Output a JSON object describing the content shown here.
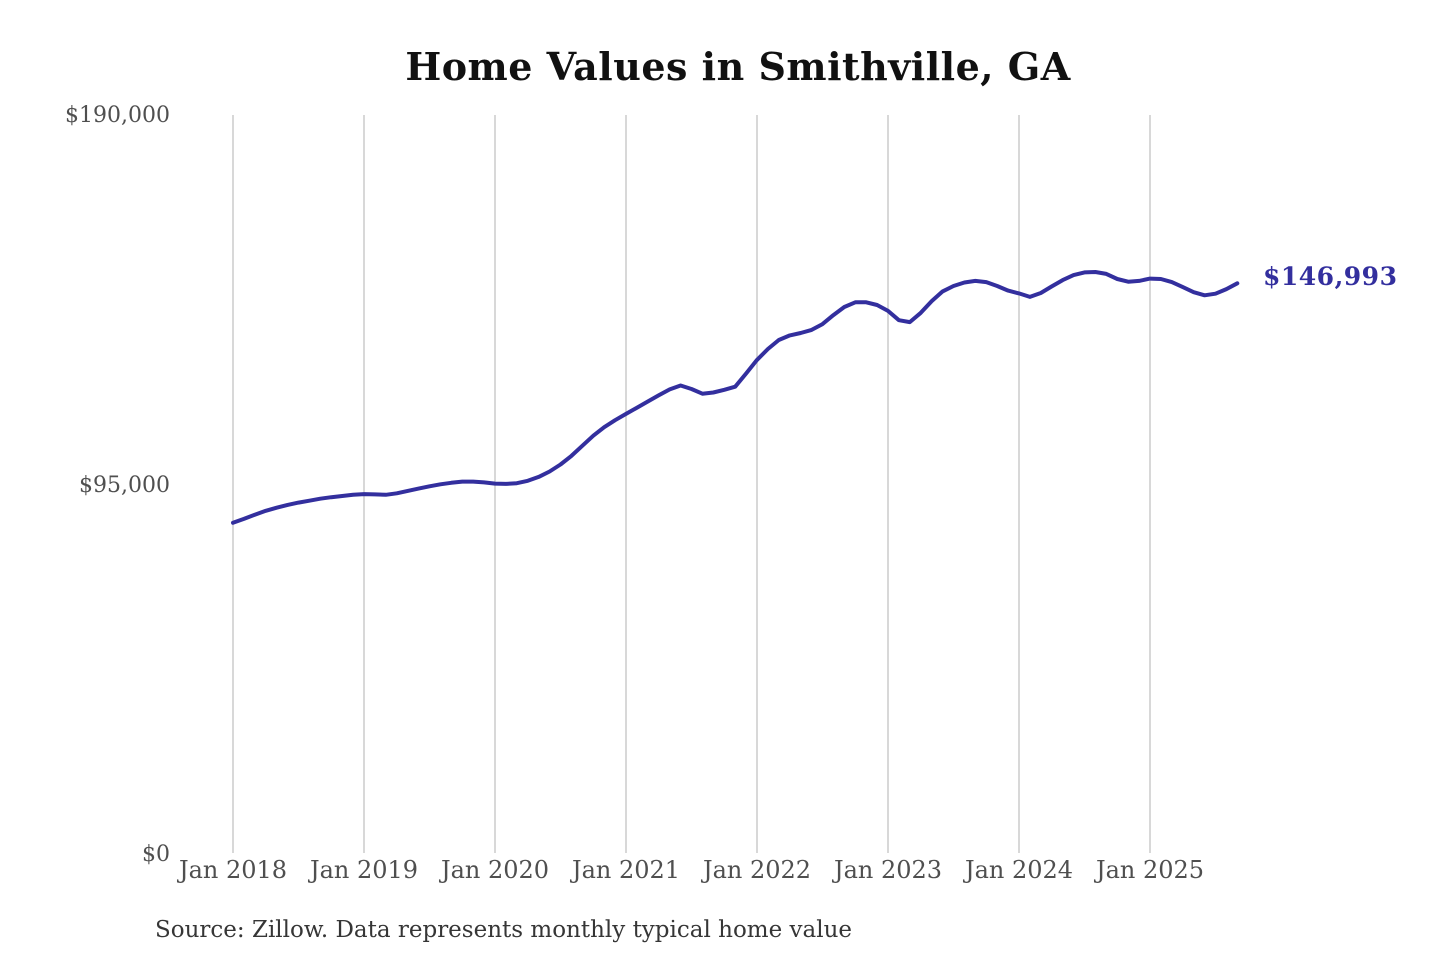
{
  "title": "Home Values in Smithville, GA",
  "annotation": {
    "label": "$146,993",
    "color": "#332f9e"
  },
  "source_note": "Source: Zillow. Data represents monthly typical home value",
  "chart_data": {
    "type": "line",
    "title": "Home Values in Smithville, GA",
    "series_name": "Monthly typical home value (USD)",
    "x_start": "Jan 2018",
    "x_end": "Sep 2025",
    "x_interval": "month",
    "x_ticks": [
      "Jan 2018",
      "Jan 2019",
      "Jan 2020",
      "Jan 2021",
      "Jan 2022",
      "Jan 2023",
      "Jan 2024",
      "Jan 2025"
    ],
    "y_ticks": [
      {
        "label": "$0",
        "value": 0
      },
      {
        "label": "$95,000",
        "value": 95000
      },
      {
        "label": "$190,000",
        "value": 190000
      }
    ],
    "ylim": [
      0,
      190000
    ],
    "grid": "vertical-only",
    "legend": "none",
    "line_color": "#332f9e",
    "grid_color": "#cccccc",
    "end_label": "$146,993",
    "end_value": 146993,
    "values": [
      85400,
      86400,
      87500,
      88500,
      89300,
      90000,
      90600,
      91100,
      91600,
      92000,
      92300,
      92600,
      92800,
      92700,
      92600,
      93000,
      93600,
      94200,
      94800,
      95300,
      95700,
      96000,
      96000,
      95800,
      95500,
      95400,
      95600,
      96200,
      97200,
      98600,
      100400,
      102600,
      105200,
      107800,
      110000,
      111800,
      113400,
      115000,
      116600,
      118200,
      119700,
      120700,
      119800,
      118600,
      118900,
      119600,
      120400,
      123800,
      127300,
      130100,
      132400,
      133600,
      134200,
      135000,
      136500,
      138800,
      140900,
      142100,
      142100,
      141400,
      139900,
      137500,
      137000,
      139400,
      142400,
      144900,
      146300,
      147200,
      147600,
      147300,
      146300,
      145100,
      144400,
      143500,
      144500,
      146200,
      147800,
      149100,
      149800,
      149900,
      149400,
      148100,
      147400,
      147600,
      148200,
      148100,
      147300,
      146000,
      144700,
      143900,
      144300,
      145500,
      146993
    ]
  }
}
